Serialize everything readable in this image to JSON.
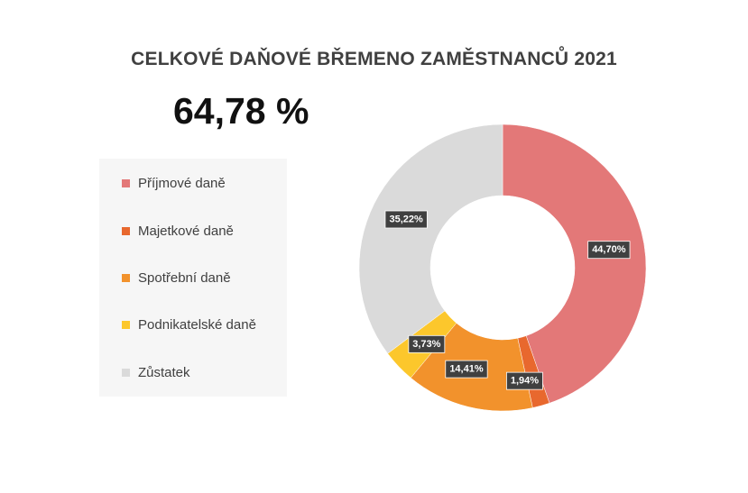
{
  "title": "CELKOVÉ DAŇOVÉ BŘEMENO ZAMĚSTNANCŮ 2021",
  "total_label": "64,78 %",
  "colors": {
    "title_text": "#404040",
    "legend_background": "#f6f6f6",
    "label_box": "#404040"
  },
  "chart_data": {
    "type": "pie",
    "subtype": "doughnut",
    "title": "CELKOVÉ DAŇOVÉ BŘEMENO ZAMĚSTNANCŮ 2021",
    "legend_position": "left",
    "slices": [
      {
        "name": "Příjmové daně",
        "value": 44.7,
        "label": "44,70%",
        "color": "#e37878"
      },
      {
        "name": "Majetkové daně",
        "value": 1.94,
        "label": "1,94%",
        "color": "#e8682e"
      },
      {
        "name": "Spotřební daně",
        "value": 14.41,
        "label": "14,41%",
        "color": "#f2922c"
      },
      {
        "name": "Podnikatelské daně",
        "value": 3.73,
        "label": "3,73%",
        "color": "#fcc72c"
      },
      {
        "name": "Zůstatek",
        "value": 35.22,
        "label": "35,22%",
        "color": "#dadada"
      }
    ]
  }
}
